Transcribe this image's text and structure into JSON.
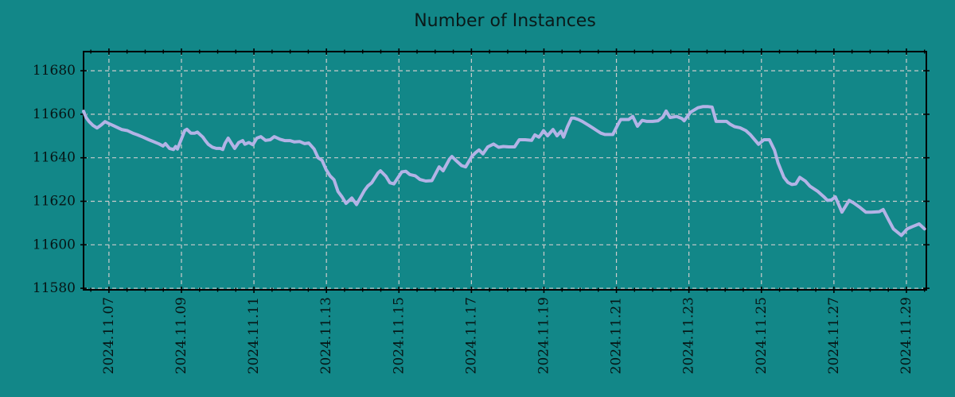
{
  "chart_data": {
    "type": "line",
    "title": "Number of Instances",
    "background_color": "#128788",
    "grid_color": "#cccccc",
    "axis_color": "#000000",
    "text_color": "#061414",
    "grid": true,
    "xlim": [
      6.3,
      29.55
    ],
    "ylim": [
      11579.3,
      11688.8
    ],
    "x_unit": "day of 2024-11 (fractional)",
    "x_tick_days": [
      7,
      9,
      11,
      13,
      15,
      17,
      19,
      21,
      23,
      25,
      27,
      29
    ],
    "x_tick_labels": [
      "2024.11.07",
      "2024.11.09",
      "2024.11.11",
      "2024.11.13",
      "2024.11.15",
      "2024.11.17",
      "2024.11.19",
      "2024.11.21",
      "2024.11.23",
      "2024.11.25",
      "2024.11.27",
      "2024.11.29"
    ],
    "x_minor_step": 0.5,
    "y_ticks": [
      11580,
      11600,
      11620,
      11640,
      11660,
      11680
    ],
    "y_tick_labels": [
      "11580",
      "11600",
      "11620",
      "11640",
      "11660",
      "11680"
    ],
    "series": [
      {
        "name": "instances",
        "color": "#b3b3e6",
        "line_width": 4,
        "points": [
          [
            6.3,
            11661.4
          ],
          [
            6.37,
            11658.5
          ],
          [
            6.45,
            11656.7
          ],
          [
            6.56,
            11654.9
          ],
          [
            6.67,
            11653.7
          ],
          [
            6.78,
            11655.0
          ],
          [
            6.89,
            11656.6
          ],
          [
            7.0,
            11655.7
          ],
          [
            7.11,
            11654.9
          ],
          [
            7.22,
            11654.0
          ],
          [
            7.35,
            11653.0
          ],
          [
            7.51,
            11652.5
          ],
          [
            7.66,
            11651.3
          ],
          [
            7.79,
            11650.5
          ],
          [
            7.94,
            11649.5
          ],
          [
            8.1,
            11648.3
          ],
          [
            8.23,
            11647.4
          ],
          [
            8.38,
            11646.4
          ],
          [
            8.49,
            11645.4
          ],
          [
            8.56,
            11646.5
          ],
          [
            8.67,
            11644.3
          ],
          [
            8.78,
            11643.8
          ],
          [
            8.84,
            11645.2
          ],
          [
            8.89,
            11644.0
          ],
          [
            9.09,
            11652.5
          ],
          [
            9.15,
            11653.1
          ],
          [
            9.26,
            11651.3
          ],
          [
            9.37,
            11651.3
          ],
          [
            9.44,
            11651.8
          ],
          [
            9.59,
            11649.5
          ],
          [
            9.66,
            11647.9
          ],
          [
            9.74,
            11646.2
          ],
          [
            9.85,
            11644.9
          ],
          [
            9.96,
            11644.3
          ],
          [
            10.07,
            11644.3
          ],
          [
            10.14,
            11643.8
          ],
          [
            10.2,
            11646.5
          ],
          [
            10.29,
            11649.0
          ],
          [
            10.47,
            11644.3
          ],
          [
            10.58,
            11647.0
          ],
          [
            10.69,
            11647.9
          ],
          [
            10.75,
            11646.2
          ],
          [
            10.86,
            11647.0
          ],
          [
            10.97,
            11646.0
          ],
          [
            11.08,
            11649.0
          ],
          [
            11.19,
            11649.7
          ],
          [
            11.32,
            11648.0
          ],
          [
            11.45,
            11648.3
          ],
          [
            11.56,
            11649.7
          ],
          [
            11.72,
            11648.5
          ],
          [
            11.85,
            11647.9
          ],
          [
            12.0,
            11647.9
          ],
          [
            12.11,
            11647.3
          ],
          [
            12.26,
            11647.5
          ],
          [
            12.4,
            11646.5
          ],
          [
            12.51,
            11646.8
          ],
          [
            12.66,
            11644.0
          ],
          [
            12.77,
            11640.0
          ],
          [
            12.88,
            11638.8
          ],
          [
            12.99,
            11634.6
          ],
          [
            13.1,
            11631.7
          ],
          [
            13.21,
            11629.9
          ],
          [
            13.32,
            11624.5
          ],
          [
            13.43,
            11622.0
          ],
          [
            13.54,
            11619.0
          ],
          [
            13.7,
            11621.5
          ],
          [
            13.83,
            11618.5
          ],
          [
            14.05,
            11625.0
          ],
          [
            14.14,
            11627.0
          ],
          [
            14.25,
            11628.5
          ],
          [
            14.42,
            11633.0
          ],
          [
            14.49,
            11634.0
          ],
          [
            14.64,
            11631.5
          ],
          [
            14.75,
            11628.5
          ],
          [
            14.86,
            11628.0
          ],
          [
            15.08,
            11633.5
          ],
          [
            15.19,
            11633.8
          ],
          [
            15.3,
            11632.3
          ],
          [
            15.45,
            11631.7
          ],
          [
            15.58,
            11630.0
          ],
          [
            15.74,
            11629.3
          ],
          [
            15.91,
            11629.5
          ],
          [
            16.11,
            11635.8
          ],
          [
            16.22,
            11634.0
          ],
          [
            16.4,
            11639.5
          ],
          [
            16.46,
            11640.6
          ],
          [
            16.57,
            11638.8
          ],
          [
            16.73,
            11636.4
          ],
          [
            16.84,
            11635.8
          ],
          [
            17.01,
            11640.6
          ],
          [
            17.12,
            11642.4
          ],
          [
            17.21,
            11643.6
          ],
          [
            17.32,
            11641.8
          ],
          [
            17.45,
            11645.0
          ],
          [
            17.61,
            11646.3
          ],
          [
            17.75,
            11644.8
          ],
          [
            17.88,
            11645.2
          ],
          [
            18.03,
            11645.0
          ],
          [
            18.19,
            11645.0
          ],
          [
            18.32,
            11648.3
          ],
          [
            18.48,
            11648.3
          ],
          [
            18.66,
            11648.0
          ],
          [
            18.75,
            11650.5
          ],
          [
            18.86,
            11649.5
          ],
          [
            18.92,
            11650.7
          ],
          [
            18.99,
            11652.5
          ],
          [
            19.1,
            11650.1
          ],
          [
            19.25,
            11653.0
          ],
          [
            19.36,
            11650.1
          ],
          [
            19.47,
            11652.2
          ],
          [
            19.54,
            11649.5
          ],
          [
            19.65,
            11654.3
          ],
          [
            19.76,
            11658.2
          ],
          [
            19.84,
            11658.2
          ],
          [
            19.95,
            11657.6
          ],
          [
            20.06,
            11656.7
          ],
          [
            20.24,
            11654.9
          ],
          [
            20.35,
            11653.7
          ],
          [
            20.46,
            11652.5
          ],
          [
            20.57,
            11651.3
          ],
          [
            20.68,
            11650.7
          ],
          [
            20.9,
            11650.7
          ],
          [
            21.05,
            11655.5
          ],
          [
            21.12,
            11657.6
          ],
          [
            21.34,
            11657.6
          ],
          [
            21.45,
            11659.0
          ],
          [
            21.58,
            11654.5
          ],
          [
            21.71,
            11657.2
          ],
          [
            21.84,
            11656.7
          ],
          [
            22.0,
            11656.7
          ],
          [
            22.15,
            11657.0
          ],
          [
            22.28,
            11658.7
          ],
          [
            22.37,
            11661.5
          ],
          [
            22.48,
            11658.5
          ],
          [
            22.66,
            11659.0
          ],
          [
            22.81,
            11658.0
          ],
          [
            22.87,
            11657.0
          ],
          [
            23.05,
            11661.0
          ],
          [
            23.25,
            11663.0
          ],
          [
            23.38,
            11663.5
          ],
          [
            23.53,
            11663.5
          ],
          [
            23.64,
            11663.3
          ],
          [
            23.75,
            11656.7
          ],
          [
            23.9,
            11656.7
          ],
          [
            24.04,
            11656.7
          ],
          [
            24.13,
            11655.5
          ],
          [
            24.26,
            11654.3
          ],
          [
            24.41,
            11653.8
          ],
          [
            24.57,
            11652.5
          ],
          [
            24.7,
            11650.5
          ],
          [
            24.92,
            11646.2
          ],
          [
            25.07,
            11648.3
          ],
          [
            25.22,
            11648.3
          ],
          [
            25.36,
            11643.5
          ],
          [
            25.46,
            11637.6
          ],
          [
            25.62,
            11631.0
          ],
          [
            25.73,
            11628.7
          ],
          [
            25.84,
            11627.7
          ],
          [
            25.95,
            11628.0
          ],
          [
            26.06,
            11631.0
          ],
          [
            26.21,
            11629.3
          ],
          [
            26.34,
            11626.9
          ],
          [
            26.56,
            11624.5
          ],
          [
            26.72,
            11622.1
          ],
          [
            26.82,
            11620.4
          ],
          [
            26.93,
            11620.6
          ],
          [
            27.04,
            11622.0
          ],
          [
            27.22,
            11615.0
          ],
          [
            27.42,
            11620.4
          ],
          [
            27.55,
            11619.2
          ],
          [
            27.7,
            11617.4
          ],
          [
            27.88,
            11615.0
          ],
          [
            28.03,
            11615.0
          ],
          [
            28.25,
            11615.2
          ],
          [
            28.36,
            11616.2
          ],
          [
            28.51,
            11611.4
          ],
          [
            28.64,
            11607.3
          ],
          [
            28.86,
            11604.3
          ],
          [
            29.02,
            11607.3
          ],
          [
            29.17,
            11608.4
          ],
          [
            29.35,
            11609.6
          ],
          [
            29.5,
            11607.3
          ]
        ]
      }
    ],
    "legend": null
  }
}
